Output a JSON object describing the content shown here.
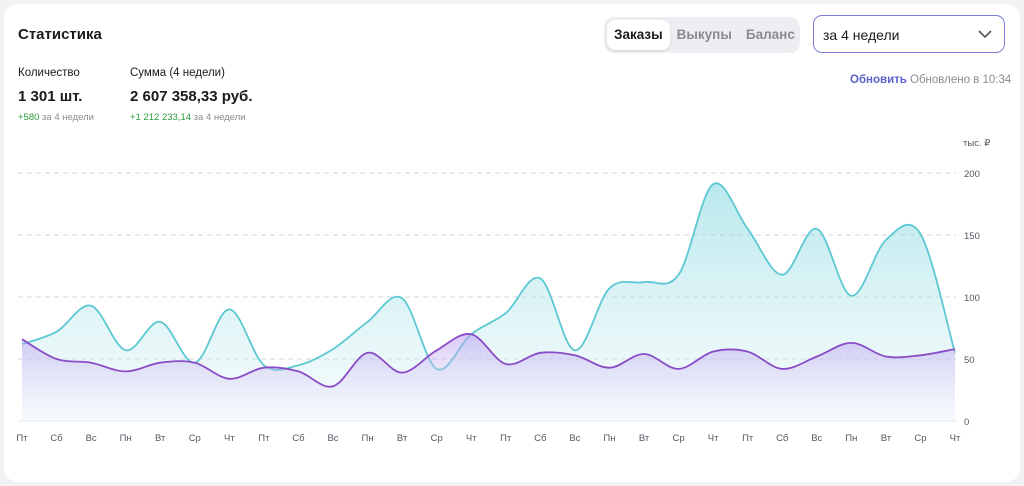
{
  "header": {
    "title": "Статистика",
    "tabs": [
      {
        "label": "Заказы",
        "active": true
      },
      {
        "label": "Выкупы",
        "active": false
      },
      {
        "label": "Баланс",
        "active": false
      }
    ],
    "period": "за 4 недели"
  },
  "metrics": {
    "quantity": {
      "label": "Количество",
      "value": "1 301 шт.",
      "delta": "+580",
      "delta_note": "за 4 недели"
    },
    "sum": {
      "label": "Сумма (4 недели)",
      "value": "2 607 358,33 руб.",
      "delta": "+1 212 233,14",
      "delta_note": "за 4 недели"
    }
  },
  "update": {
    "refresh_label": "Обновить",
    "status": "Обновлено в 10:34"
  },
  "colors": {
    "accent": "#5a62c6",
    "teal": "#5bc8d2",
    "purple": "#8a4cc6",
    "positive": "#2a9b3c"
  },
  "chart_data": {
    "type": "area",
    "y_unit_label": "тыс. ₽",
    "ylim": [
      0,
      200
    ],
    "yticks": [
      0,
      50,
      100,
      150,
      200
    ],
    "grid": true,
    "categories": [
      "Пт",
      "Сб",
      "Вс",
      "Пн",
      "Вт",
      "Ср",
      "Чт",
      "Пт",
      "Сб",
      "Вс",
      "Пн",
      "Вт",
      "Ср",
      "Чт",
      "Пт",
      "Сб",
      "Вс",
      "Пн",
      "Вт",
      "Ср",
      "Чт",
      "Пт",
      "Сб",
      "Вс",
      "Пн",
      "Вт",
      "Ср",
      "Чт"
    ],
    "series": [
      {
        "values": [
          62,
          72,
          93,
          57,
          80,
          47,
          90,
          45,
          45,
          58,
          80,
          99,
          42,
          70,
          87,
          115,
          57,
          107,
          112,
          118,
          191,
          155,
          118,
          155,
          101,
          146,
          151,
          55
        ]
      },
      {
        "values": [
          66,
          50,
          47,
          40,
          47,
          47,
          34,
          43,
          40,
          28,
          55,
          39,
          57,
          70,
          46,
          55,
          53,
          43,
          54,
          42,
          56,
          56,
          42,
          52,
          63,
          52,
          53,
          58
        ]
      }
    ]
  }
}
